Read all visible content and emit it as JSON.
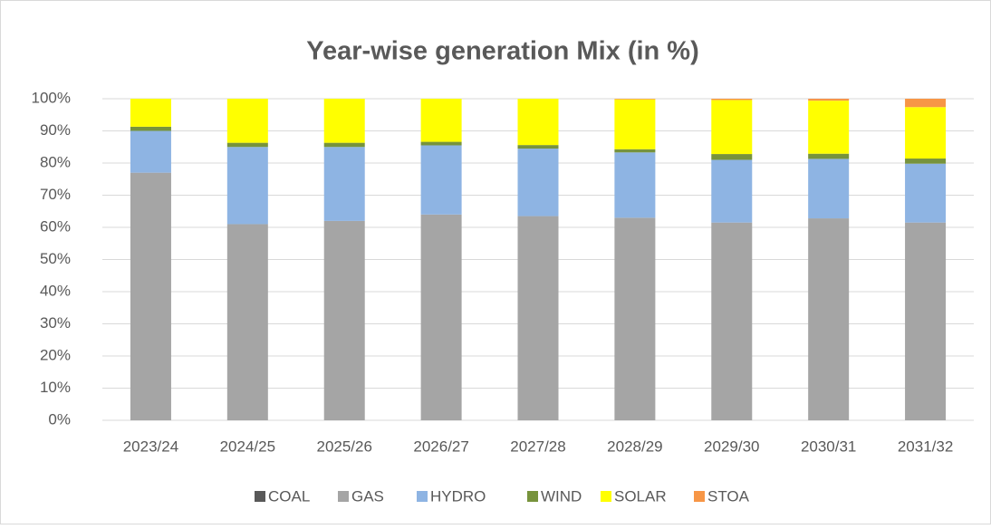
{
  "chart_data": {
    "type": "stacked_bar",
    "title": "Year-wise generation Mix (in %)",
    "categories": [
      "2023/24",
      "2024/25",
      "2025/26",
      "2026/27",
      "2027/28",
      "2028/29",
      "2029/30",
      "2030/31",
      "2031/32"
    ],
    "series": [
      {
        "name": "COAL",
        "color": "#595959",
        "values": [
          0,
          0,
          0,
          0,
          0,
          0,
          0,
          0,
          0
        ]
      },
      {
        "name": "GAS",
        "color": "#a5a5a5",
        "values": [
          77,
          61,
          62,
          64,
          63.5,
          63,
          61.5,
          62.8,
          61.5
        ]
      },
      {
        "name": "HYDRO",
        "color": "#8eb4e3",
        "values": [
          13,
          24,
          23,
          21.5,
          21,
          20.3,
          19.5,
          18.5,
          18.3
        ]
      },
      {
        "name": "WIND",
        "color": "#77933c",
        "values": [
          1.3,
          1.3,
          1.3,
          1.1,
          1.1,
          1,
          1.8,
          1.6,
          1.6
        ]
      },
      {
        "name": "SOLAR",
        "color": "#ffff00",
        "values": [
          8.7,
          13.7,
          13.7,
          13.4,
          14.4,
          15.5,
          16.8,
          16.5,
          16
        ]
      },
      {
        "name": "STOA",
        "color": "#f79646",
        "values": [
          0,
          0,
          0,
          0,
          0,
          0.2,
          0.4,
          0.6,
          2.6
        ]
      }
    ],
    "ylim": [
      0,
      100
    ],
    "yticks": [
      {
        "value": 0,
        "label": "0%"
      },
      {
        "value": 10,
        "label": "10%"
      },
      {
        "value": 20,
        "label": "20%"
      },
      {
        "value": 30,
        "label": "30%"
      },
      {
        "value": 40,
        "label": "40%"
      },
      {
        "value": 50,
        "label": "50%"
      },
      {
        "value": 60,
        "label": "60%"
      },
      {
        "value": 70,
        "label": "70%"
      },
      {
        "value": 80,
        "label": "80%"
      },
      {
        "value": 90,
        "label": "90%"
      },
      {
        "value": 100,
        "label": "100%"
      }
    ],
    "grid": true,
    "legend": "bottom"
  }
}
